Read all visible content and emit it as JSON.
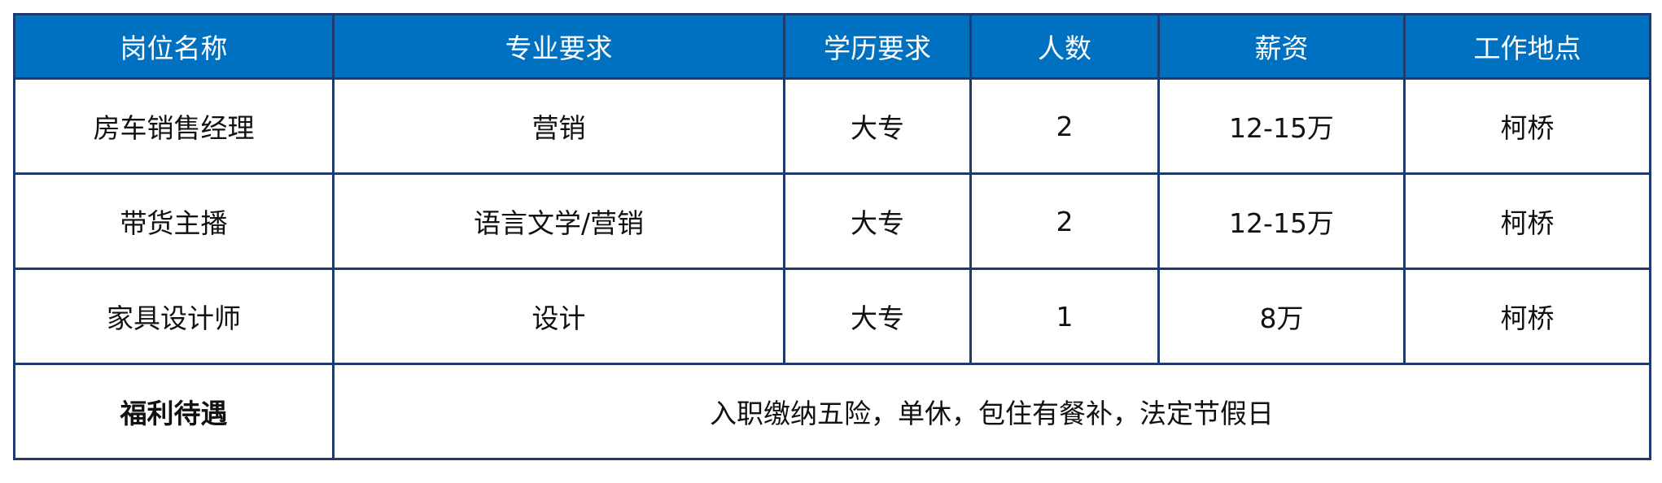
{
  "headers": [
    "岗位名称",
    "专业要求",
    "学历要求",
    "人数",
    "薪资",
    "工作地点"
  ],
  "rows": [
    [
      "房车销售经理",
      "营销",
      "大专",
      "2",
      "12-15万",
      "柯桥"
    ],
    [
      "带货主播",
      "语言文学/营销",
      "大专",
      "2",
      "12-15万",
      "柯桥"
    ],
    [
      "家具设计师",
      "设计",
      "大专",
      "1",
      "8万",
      "柯桥"
    ]
  ],
  "benefits": {
    "label": "福利待遇",
    "value": "入职缴纳五险，单休，包住有餐补，法定节假日"
  },
  "colors": {
    "header_bg": "#0070c0",
    "border": "#1f3a6e"
  }
}
